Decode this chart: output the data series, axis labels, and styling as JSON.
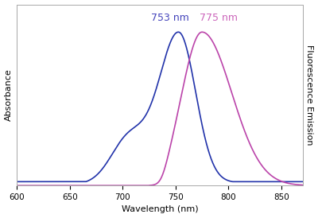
{
  "x_min": 600,
  "x_max": 870,
  "x_ticks": [
    600,
    650,
    700,
    750,
    800,
    850
  ],
  "xlabel": "Wavelength (nm)",
  "ylabel_left": "Absorbance",
  "ylabel_right": "Fluorescence Emission",
  "abs_peak": 753,
  "abs_peak_label": "753 nm",
  "abs_peak_color": "#4444bb",
  "em_peak": 775,
  "em_peak_label": "775 nm",
  "em_peak_color": "#cc66bb",
  "abs_color": "#2233aa",
  "em_color": "#bb44aa",
  "background": "#ffffff",
  "label_fontsize": 8,
  "annotation_fontsize": 9,
  "tick_fontsize": 7.5
}
